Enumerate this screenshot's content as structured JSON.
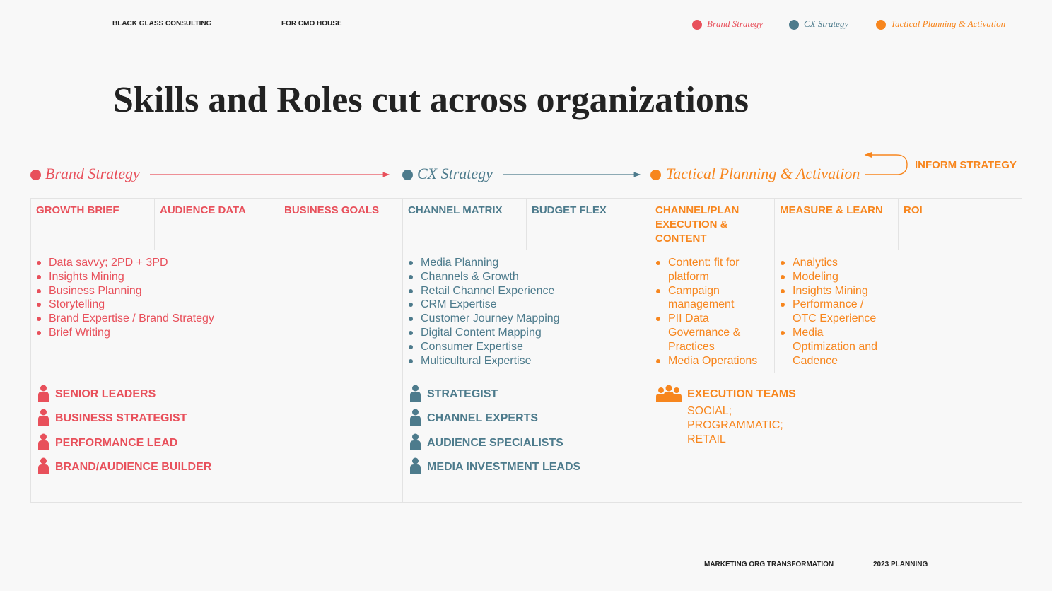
{
  "header": {
    "company": "BLACK GLASS CONSULTING",
    "client": "FOR CMO HOUSE"
  },
  "title": "Skills and Roles cut across organizations",
  "feedback": "INFORM STRATEGY",
  "groups": [
    {
      "name": "Brand Strategy",
      "color": "#e8505b",
      "headers": [
        "GROWTH BRIEF",
        "AUDIENCE DATA",
        "BUSINESS GOALS"
      ],
      "skills": [
        [
          "Data savvy; 2PD + 3PD",
          "Insights Mining",
          "Business Planning",
          "Storytelling",
          "Brand Expertise / Brand Strategy",
          "Brief Writing"
        ]
      ],
      "roles": [
        "SENIOR LEADERS",
        "BUSINESS STRATEGIST",
        "PERFORMANCE LEAD",
        "BRAND/AUDIENCE BUILDER"
      ]
    },
    {
      "name": "CX Strategy",
      "color": "#4d7b8c",
      "headers": [
        "CHANNEL MATRIX",
        "BUDGET FLEX"
      ],
      "skills": [
        [
          "Media Planning",
          "Channels & Growth",
          "Retail Channel Experience",
          "CRM Expertise",
          "Customer Journey Mapping",
          "Digital Content Mapping",
          "Consumer Expertise",
          "Multicultural Expertise"
        ]
      ],
      "roles": [
        "STRATEGIST",
        "CHANNEL EXPERTS",
        "AUDIENCE SPECIALISTS",
        "MEDIA INVESTMENT LEADS"
      ]
    },
    {
      "name": "Tactical Planning & Activation",
      "color": "#f7861e",
      "headers": [
        "CHANNEL/PLAN EXECUTION & CONTENT",
        "MEASURE & LEARN",
        "ROI"
      ],
      "skills": [
        [
          "Content: fit for platform",
          "Campaign management",
          "PII Data Governance & Practices",
          "Media Operations"
        ],
        [
          "Analytics",
          "Modeling",
          "Insights Mining",
          "Performance / OTC Experience",
          "Media Optimization and Cadence"
        ]
      ],
      "roles": [
        "EXECUTION TEAMS"
      ],
      "role_detail": "SOCIAL; PROGRAMMATIC; RETAIL"
    }
  ],
  "footer": {
    "left": "MARKETING ORG TRANSFORMATION",
    "right": "2023 PLANNING"
  }
}
